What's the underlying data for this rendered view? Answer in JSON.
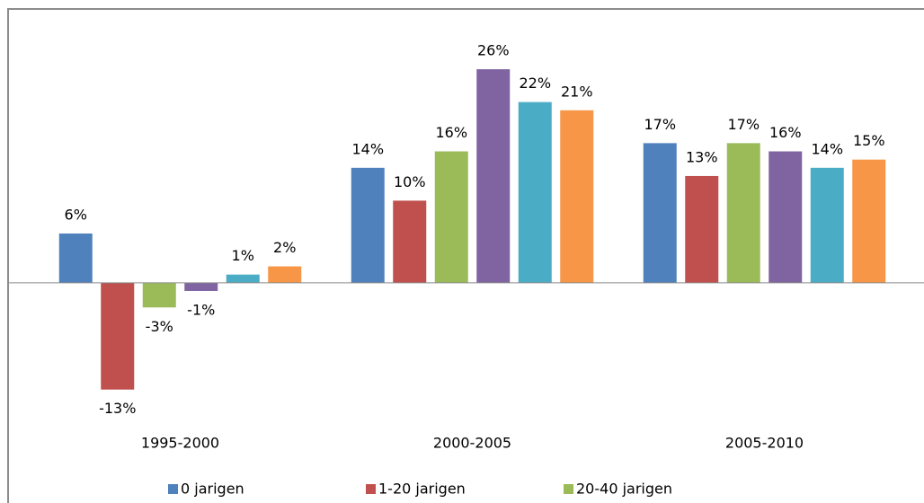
{
  "chart_data": {
    "type": "bar",
    "categories": [
      "1995-2000",
      "2000-2005",
      "2005-2010"
    ],
    "series": [
      {
        "name": "0 jarigen",
        "color": "#4f81bd",
        "values": [
          6,
          14,
          17
        ],
        "value_labels": [
          "6%",
          "14%",
          "17%"
        ]
      },
      {
        "name": "1-20 jarigen",
        "color": "#c0504d",
        "values": [
          -13,
          10,
          13
        ],
        "value_labels": [
          "-13%",
          "10%",
          "13%"
        ]
      },
      {
        "name": "20-40 jarigen",
        "color": "#9bbb59",
        "values": [
          -3,
          16,
          17
        ],
        "value_labels": [
          "-3%",
          "16%",
          "17%"
        ]
      },
      {
        "color": "#8064a2",
        "values": [
          -1,
          26,
          16
        ],
        "value_labels": [
          "-1%",
          "26%",
          "16%"
        ]
      },
      {
        "color": "#4bacc6",
        "values": [
          1,
          22,
          14
        ],
        "value_labels": [
          "1%",
          "22%",
          "14%"
        ]
      },
      {
        "color": "#f79646",
        "values": [
          2,
          21,
          15
        ],
        "value_labels": [
          "2%",
          "21%",
          "15%"
        ]
      }
    ],
    "ylim": [
      -15,
      30
    ]
  }
}
